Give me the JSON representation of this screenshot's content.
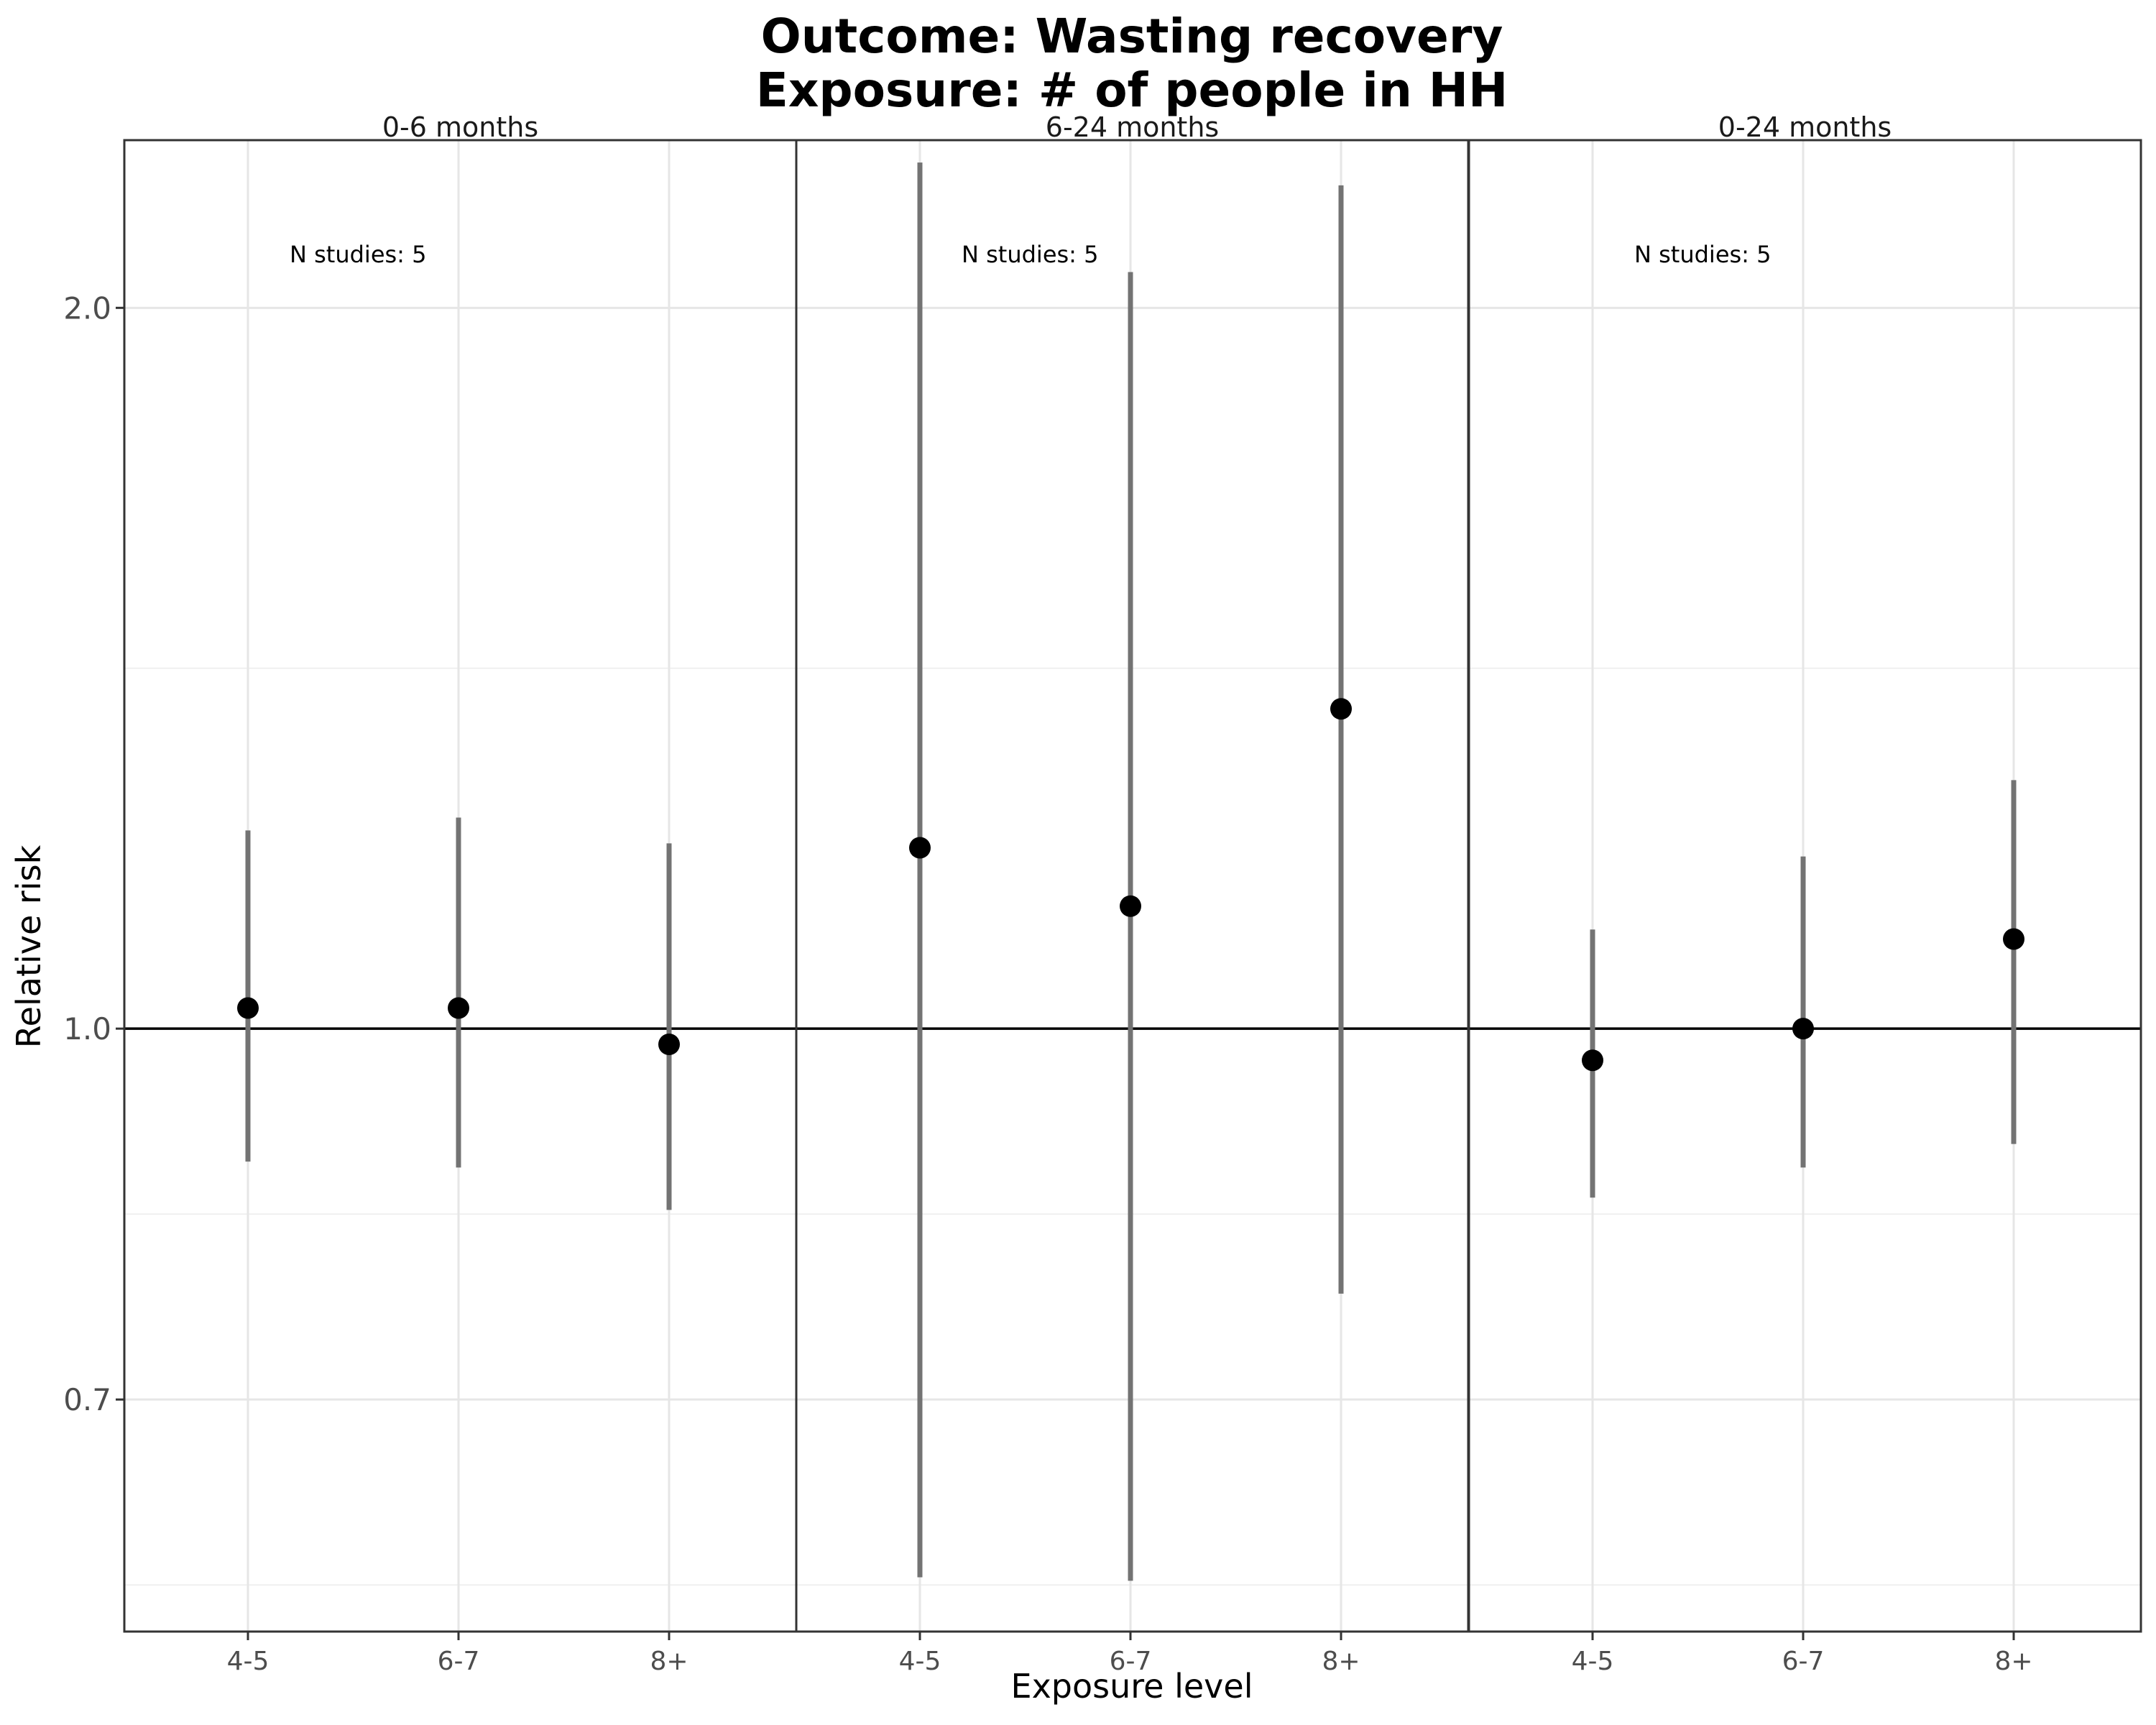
{
  "chart_data": {
    "type": "scatter",
    "title_line1": "Outcome: Wasting recovery",
    "title_line2": "Exposure: # of people in HH",
    "xlabel": "Exposure level",
    "ylabel": "Relative risk",
    "y_scale": "log",
    "ylim": [
      0.56,
      2.35
    ],
    "yticks": [
      0.7,
      1.0,
      2.0
    ],
    "ytick_labels": [
      "0.7",
      "1.0",
      "2.0"
    ],
    "reference_line": 1.0,
    "categories": [
      "4-5",
      "6-7",
      "8+"
    ],
    "grid": true,
    "panels": [
      {
        "label": "0-6 months",
        "annotation": "N studies: 5",
        "points": [
          {
            "category": "4-5",
            "estimate": 1.02,
            "lower": 0.88,
            "upper": 1.21
          },
          {
            "category": "6-7",
            "estimate": 1.02,
            "lower": 0.875,
            "upper": 1.225
          },
          {
            "category": "8+",
            "estimate": 0.985,
            "lower": 0.84,
            "upper": 1.195
          }
        ]
      },
      {
        "label": "6-24 months",
        "annotation": "N studies: 5",
        "points": [
          {
            "category": "4-5",
            "estimate": 1.19,
            "lower": 0.59,
            "upper": 2.3
          },
          {
            "category": "6-7",
            "estimate": 1.125,
            "lower": 0.588,
            "upper": 2.07
          },
          {
            "category": "8+",
            "estimate": 1.36,
            "lower": 0.775,
            "upper": 2.25
          }
        ]
      },
      {
        "label": "0-24 months",
        "annotation": "N studies: 5",
        "points": [
          {
            "category": "4-5",
            "estimate": 0.97,
            "lower": 0.85,
            "upper": 1.1
          },
          {
            "category": "6-7",
            "estimate": 1.0,
            "lower": 0.875,
            "upper": 1.18
          },
          {
            "category": "8+",
            "estimate": 1.09,
            "lower": 0.895,
            "upper": 1.27
          }
        ]
      }
    ]
  }
}
